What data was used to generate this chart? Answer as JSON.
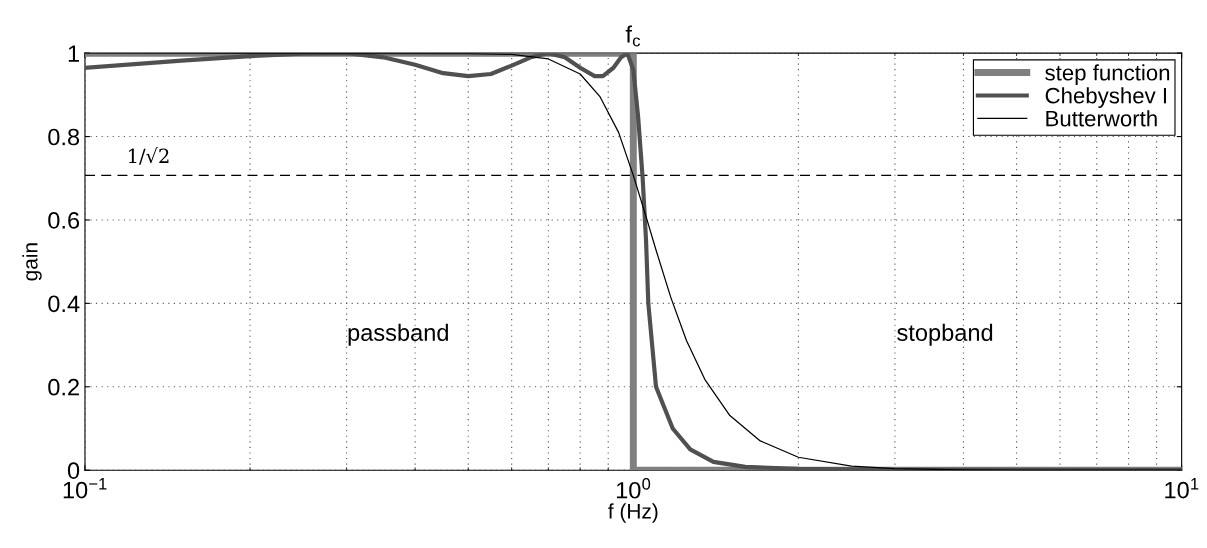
{
  "chart_data": {
    "type": "line",
    "xlabel": "f (Hz)",
    "ylabel": "gain",
    "log": "x",
    "xlim": [
      0.1,
      10
    ],
    "xticks": [
      {
        "value": 0.1,
        "label": "10$^{−1}$"
      },
      {
        "value": 1,
        "label": "10$^{0}$"
      },
      {
        "value": 10,
        "label": "10$^{1}$"
      }
    ],
    "ylim": [
      0,
      1
    ],
    "yticks": [
      0,
      0.2,
      0.4,
      0.6,
      0.8,
      1
    ],
    "grid": true,
    "legend": "top right",
    "marker": "none",
    "line_style": "solid",
    "series": [
      {
        "name": "step function",
        "color": "#808080",
        "x": [
          0.1,
          1,
          1,
          10
        ],
        "values": [
          1,
          1,
          0,
          0
        ]
      },
      {
        "name": "Chebyshev I",
        "color": "#505050",
        "x": [
          0.1,
          0.15,
          0.2,
          0.25,
          0.3,
          0.35,
          0.4,
          0.45,
          0.5,
          0.55,
          0.6,
          0.65,
          0.7,
          0.75,
          0.8,
          0.85,
          0.88,
          0.92,
          0.95,
          0.975,
          1.0,
          1.02,
          1.04,
          1.055,
          1.065,
          1.1,
          1.18,
          1.27,
          1.4,
          1.6,
          2,
          3,
          10
        ],
        "values": [
          0.965,
          0.982,
          0.993,
          0.999,
          1.0,
          0.99,
          0.972,
          0.952,
          0.945,
          0.95,
          0.97,
          0.99,
          1.0,
          0.99,
          0.965,
          0.945,
          0.945,
          0.965,
          0.99,
          1.0,
          0.96,
          0.85,
          0.7,
          0.55,
          0.4,
          0.2,
          0.1,
          0.05,
          0.02,
          0.008,
          0.003,
          0.001,
          0
        ]
      },
      {
        "name": "Butterworth",
        "color": "#000000",
        "x": [
          0.1,
          0.5,
          0.6,
          0.7,
          0.8,
          0.87,
          0.94,
          1.0,
          1.06,
          1.1,
          1.17,
          1.25,
          1.35,
          1.5,
          1.7,
          2,
          2.5,
          3,
          4,
          5,
          10
        ],
        "values": [
          1,
          0.999,
          0.997,
          0.986,
          0.95,
          0.895,
          0.81,
          0.707,
          0.599,
          0.528,
          0.415,
          0.311,
          0.218,
          0.131,
          0.071,
          0.031,
          0.01,
          0.004,
          0.001,
          0,
          0
        ]
      }
    ],
    "ref_lines": [
      {
        "axis": "y",
        "value": 0.7071,
        "label": "1/√2",
        "color": "#000000",
        "line_style": "dashed"
      }
    ],
    "annotations": [
      {
        "text": "f$_{c}$",
        "x": 1,
        "y": 1
      },
      "passband",
      "stopband"
    ]
  }
}
